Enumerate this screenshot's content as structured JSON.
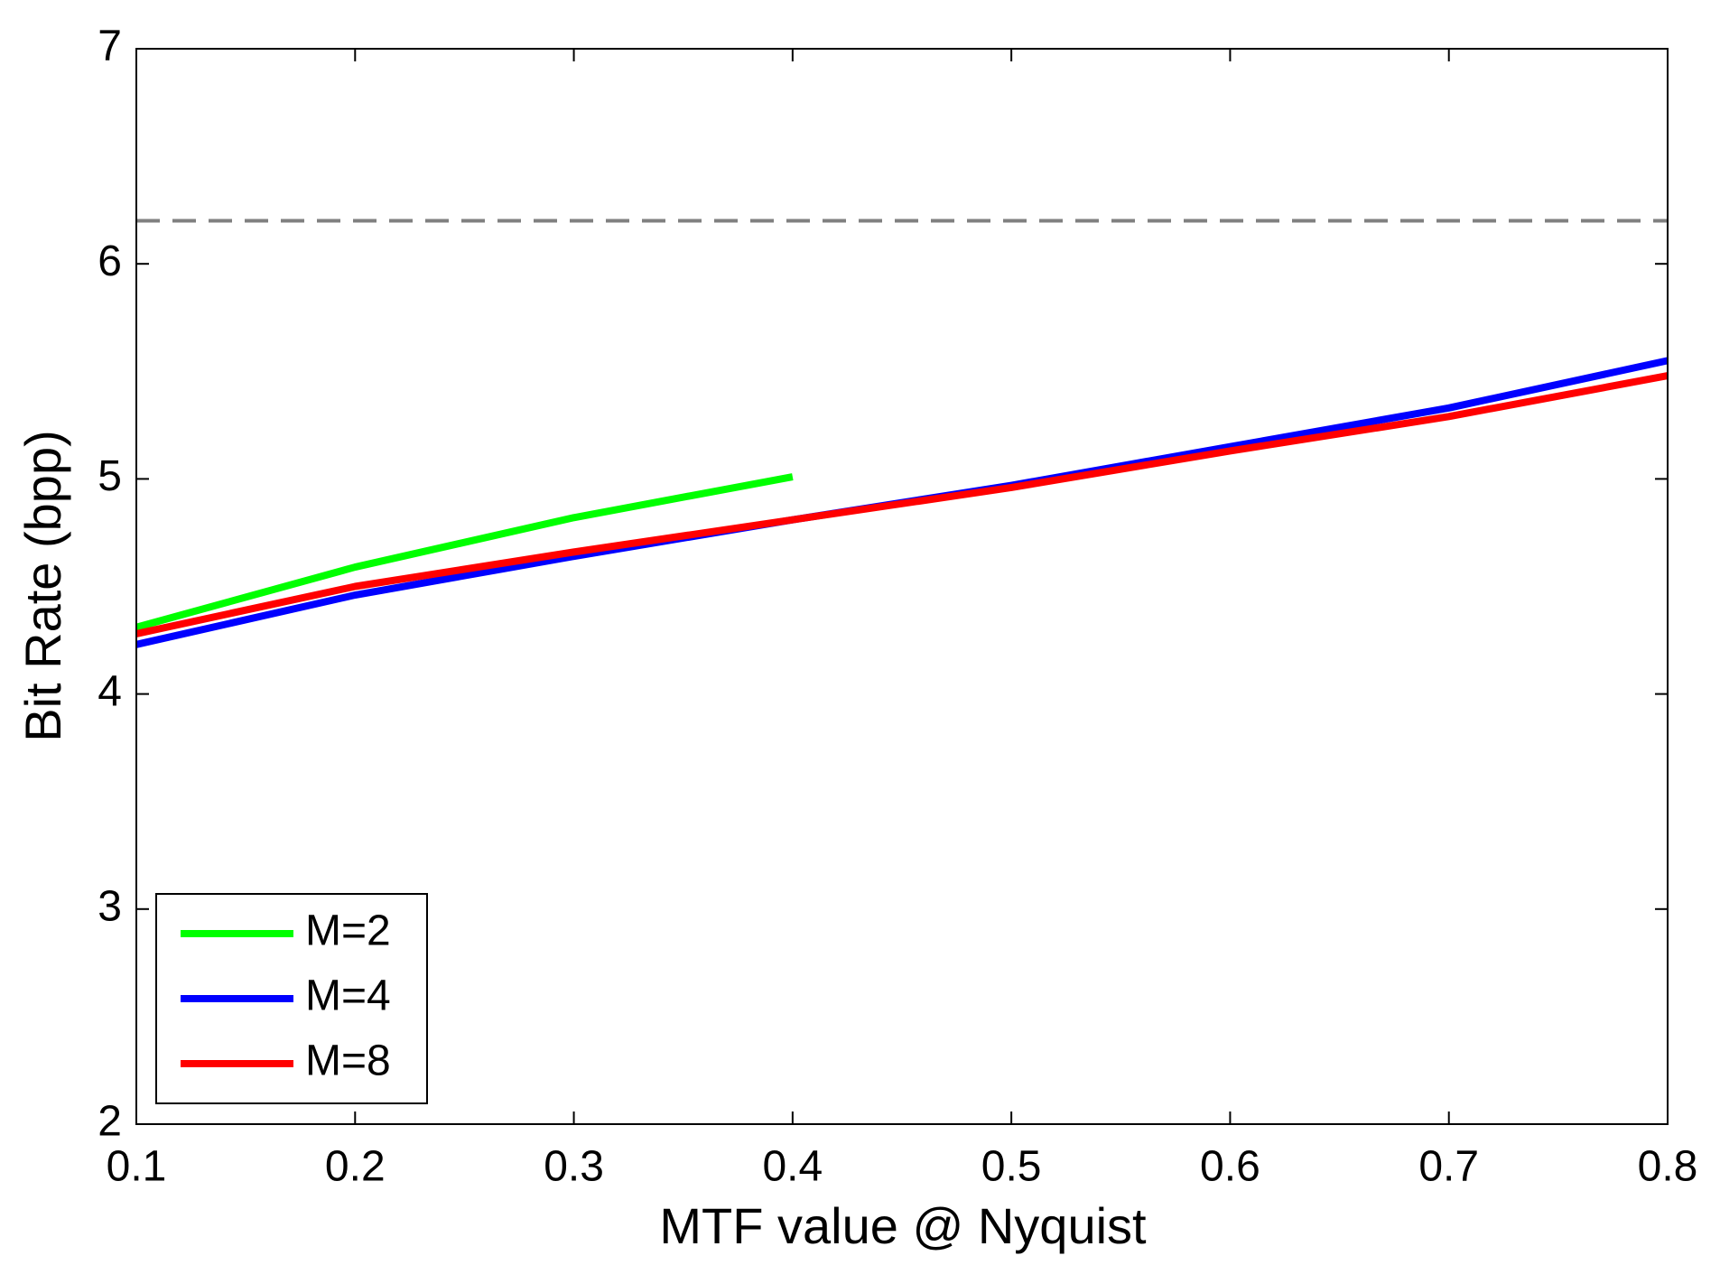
{
  "chart_data": {
    "type": "line",
    "x_label": "MTF value @ Nyquist",
    "y_label": "Bit Rate (bpp)",
    "x": [
      0.1,
      0.2,
      0.3,
      0.4,
      0.5,
      0.6,
      0.7,
      0.8
    ],
    "series": [
      {
        "name": "M=2",
        "color": "#00ff00",
        "values": [
          4.31,
          4.59,
          4.82,
          5.01,
          null,
          null,
          null,
          null
        ]
      },
      {
        "name": "M=4",
        "color": "#0000ff",
        "values": [
          4.23,
          4.46,
          4.64,
          4.81,
          4.97,
          5.15,
          5.33,
          5.55
        ]
      },
      {
        "name": "M=8",
        "color": "#ff0000",
        "values": [
          4.28,
          4.5,
          4.66,
          4.81,
          4.96,
          5.13,
          5.29,
          5.48
        ]
      }
    ],
    "reference_line": {
      "value": 6.2,
      "color": "#808080",
      "style": "dashed"
    },
    "xlim": [
      0.1,
      0.8
    ],
    "xticks": [
      0.1,
      0.2,
      0.3,
      0.4,
      0.5,
      0.6,
      0.7,
      0.8
    ],
    "ylim": [
      2,
      7
    ],
    "yticks": [
      2,
      3,
      4,
      5,
      6,
      7
    ],
    "grid": false,
    "legend": "lower-left"
  }
}
